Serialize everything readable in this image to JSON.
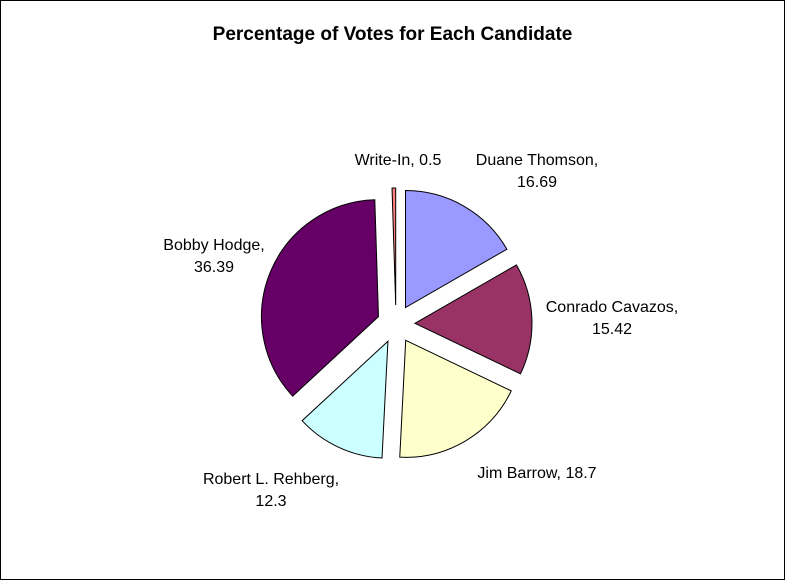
{
  "chart_data": {
    "type": "pie",
    "title": "Percentage of Votes for Each Candidate",
    "exploded": true,
    "slices": [
      {
        "label": "Duane Thomson",
        "value": 16.69,
        "color": "#9999FF",
        "label_lines": [
          "Duane Thomson,",
          "16.69"
        ]
      },
      {
        "label": "Conrado Cavazos",
        "value": 15.42,
        "color": "#993366",
        "label_lines": [
          "Conrado Cavazos,",
          "15.42"
        ]
      },
      {
        "label": "Jim Barrow",
        "value": 18.7,
        "color": "#FFFFCC",
        "label_lines": [
          "Jim Barrow, 18.7"
        ]
      },
      {
        "label": "Robert L. Rehberg",
        "value": 12.3,
        "color": "#CCFFFF",
        "label_lines": [
          "Robert L. Rehberg,",
          "12.3"
        ]
      },
      {
        "label": "Bobby Hodge",
        "value": 36.39,
        "color": "#660066",
        "label_lines": [
          "Bobby Hodge,",
          "36.39"
        ]
      },
      {
        "label": "Write-In",
        "value": 0.5,
        "color": "#FF8080",
        "label_lines": [
          "Write-In, 0.5"
        ]
      }
    ]
  }
}
